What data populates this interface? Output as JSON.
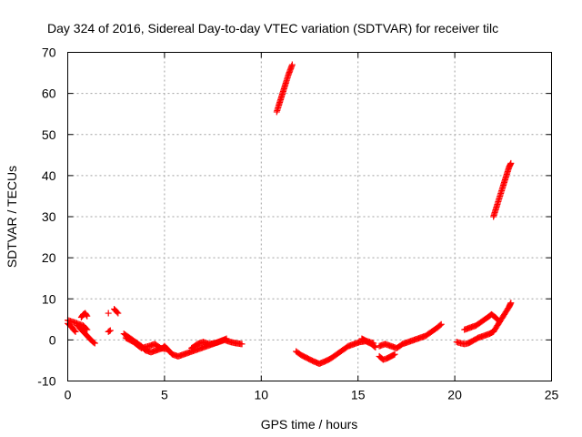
{
  "chart_data": {
    "type": "scatter",
    "title": "Day 324 of 2016, Sidereal Day-to-day VTEC variation (SDTVAR) for receiver tilc",
    "xlabel": "GPS time / hours",
    "ylabel": "SDTVAR / TECUs",
    "xlim": [
      0,
      25
    ],
    "ylim": [
      -10,
      70
    ],
    "xticks": [
      0,
      5,
      10,
      15,
      20,
      25
    ],
    "yticks": [
      -10,
      0,
      10,
      20,
      30,
      40,
      50,
      60,
      70
    ],
    "grid": true,
    "marker": "+",
    "color": "#ff0000",
    "series": [
      {
        "name": "SDTVAR",
        "segments": [
          [
            [
              0.0,
              4.8
            ],
            [
              0.2,
              4.5
            ],
            [
              0.4,
              4.2
            ],
            [
              0.6,
              3.8
            ],
            [
              0.8,
              3.5
            ],
            [
              1.0,
              2.5
            ]
          ],
          [
            [
              0.0,
              4.0
            ],
            [
              0.2,
              3.2
            ],
            [
              0.3,
              2.5
            ],
            [
              0.4,
              2.0
            ]
          ],
          [
            [
              0.5,
              3.5
            ],
            [
              0.7,
              2.5
            ],
            [
              0.9,
              1.5
            ],
            [
              1.1,
              0.5
            ],
            [
              1.3,
              -0.5
            ],
            [
              1.4,
              -0.8
            ]
          ],
          [
            [
              0.7,
              5.5
            ],
            [
              0.8,
              6.2
            ],
            [
              0.9,
              6.5
            ],
            [
              1.0,
              5.8
            ]
          ],
          [
            [
              2.1,
              6.5
            ]
          ],
          [
            [
              2.1,
              2.0
            ],
            [
              2.2,
              2.3
            ]
          ],
          [
            [
              2.4,
              7.5
            ],
            [
              2.5,
              7.0
            ],
            [
              2.6,
              6.5
            ]
          ],
          [
            [
              2.9,
              1.5
            ],
            [
              3.2,
              0.5
            ],
            [
              3.5,
              -0.5
            ],
            [
              3.8,
              -1.5
            ],
            [
              4.0,
              -2.5
            ],
            [
              4.3,
              -3.0
            ],
            [
              4.6,
              -2.5
            ],
            [
              4.9,
              -2.0
            ],
            [
              5.0,
              -1.5
            ],
            [
              5.2,
              -2.5
            ],
            [
              5.4,
              -3.5
            ],
            [
              5.7,
              -4.0
            ],
            [
              6.0,
              -3.5
            ],
            [
              6.3,
              -3.0
            ],
            [
              6.6,
              -2.5
            ],
            [
              6.9,
              -2.0
            ],
            [
              7.2,
              -1.5
            ],
            [
              7.5,
              -1.0
            ],
            [
              7.8,
              -0.5
            ],
            [
              8.1,
              0.0
            ],
            [
              8.4,
              -0.5
            ],
            [
              8.7,
              -0.8
            ],
            [
              9.0,
              -1.0
            ]
          ],
          [
            [
              3.0,
              0.5
            ],
            [
              3.4,
              -0.5
            ],
            [
              3.8,
              -2.0
            ],
            [
              4.2,
              -1.5
            ],
            [
              4.5,
              -1.0
            ],
            [
              4.8,
              -2.0
            ],
            [
              5.1,
              -2.2
            ]
          ],
          [
            [
              6.4,
              -2.0
            ],
            [
              6.7,
              -1.0
            ],
            [
              7.0,
              -0.5
            ],
            [
              7.3,
              -1.0
            ],
            [
              7.6,
              -0.8
            ],
            [
              7.9,
              -0.3
            ],
            [
              8.2,
              0.3
            ]
          ],
          [
            [
              10.8,
              55.5
            ],
            [
              11.0,
              58.5
            ],
            [
              11.2,
              61.5
            ],
            [
              11.4,
              64.5
            ],
            [
              11.6,
              67.0
            ]
          ],
          [
            [
              11.8,
              -2.8
            ],
            [
              12.1,
              -3.8
            ],
            [
              12.4,
              -4.5
            ],
            [
              12.7,
              -5.2
            ],
            [
              13.0,
              -5.8
            ],
            [
              13.3,
              -5.2
            ],
            [
              13.6,
              -4.5
            ],
            [
              13.9,
              -3.5
            ],
            [
              14.2,
              -2.5
            ],
            [
              14.5,
              -1.5
            ],
            [
              14.8,
              -1.0
            ],
            [
              15.1,
              -0.5
            ],
            [
              15.4,
              -0.3
            ],
            [
              15.7,
              -1.0
            ],
            [
              15.9,
              -1.8
            ]
          ],
          [
            [
              15.2,
              0.3
            ],
            [
              15.4,
              -0.2
            ],
            [
              15.6,
              -0.5
            ],
            [
              15.8,
              -0.8
            ]
          ],
          [
            [
              16.1,
              -4.0
            ],
            [
              16.3,
              -4.8
            ],
            [
              16.5,
              -4.5
            ],
            [
              16.7,
              -4.0
            ],
            [
              16.9,
              -3.5
            ]
          ],
          [
            [
              16.1,
              -1.5
            ],
            [
              16.4,
              -1.0
            ],
            [
              16.7,
              -1.5
            ],
            [
              17.0,
              -2.0
            ],
            [
              17.3,
              -1.0
            ],
            [
              17.6,
              -0.5
            ],
            [
              17.9,
              0.0
            ],
            [
              18.2,
              0.5
            ],
            [
              18.5,
              1.0
            ],
            [
              18.8,
              2.0
            ],
            [
              19.1,
              3.0
            ],
            [
              19.3,
              3.8
            ]
          ],
          [
            [
              20.1,
              -0.5
            ],
            [
              20.3,
              -0.8
            ],
            [
              20.5,
              -1.0
            ],
            [
              20.7,
              -0.8
            ],
            [
              20.9,
              -0.3
            ],
            [
              21.2,
              0.5
            ],
            [
              21.5,
              1.0
            ],
            [
              21.8,
              1.5
            ],
            [
              22.0,
              2.0
            ],
            [
              22.2,
              3.5
            ],
            [
              22.4,
              5.0
            ],
            [
              22.6,
              6.5
            ],
            [
              22.8,
              8.0
            ],
            [
              22.9,
              9.0
            ]
          ],
          [
            [
              20.5,
              2.5
            ],
            [
              20.8,
              3.0
            ],
            [
              21.1,
              3.5
            ],
            [
              21.4,
              4.5
            ],
            [
              21.7,
              5.5
            ],
            [
              21.9,
              6.2
            ],
            [
              22.1,
              5.5
            ],
            [
              22.3,
              4.5
            ]
          ],
          [
            [
              22.0,
              30.0
            ],
            [
              22.2,
              33.0
            ],
            [
              22.4,
              36.0
            ],
            [
              22.6,
              39.0
            ],
            [
              22.8,
              42.0
            ],
            [
              22.9,
              43.0
            ]
          ]
        ]
      }
    ]
  }
}
